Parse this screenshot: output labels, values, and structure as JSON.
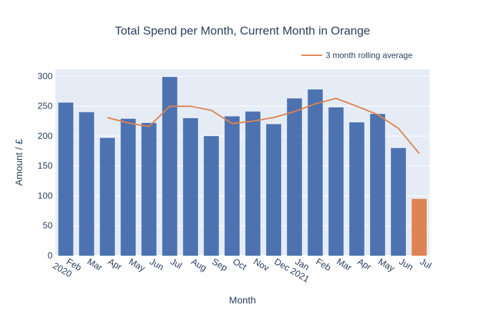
{
  "chart_data": {
    "type": "bar",
    "title": "Total Spend per Month, Current Month in Orange",
    "xlabel": "Month",
    "ylabel": "Amount / £",
    "ylim": [
      0,
      312
    ],
    "yticks": [
      0,
      50,
      100,
      150,
      200,
      250,
      300
    ],
    "grid": true,
    "legend_position": "top-right",
    "categories": [
      "Feb\n2020",
      "Mar",
      "Apr",
      "May",
      "Jun",
      "Jul",
      "Aug",
      "Sep",
      "Oct",
      "Nov",
      "Dec 2021",
      "Jan",
      "Feb",
      "Mar",
      "Apr",
      "May",
      "Jun",
      "Jul"
    ],
    "series": [
      {
        "type": "bar",
        "values": [
          256,
          240,
          197,
          229,
          222,
          299,
          230,
          200,
          233,
          241,
          220,
          263,
          278,
          248,
          223,
          237,
          180,
          95
        ],
        "colors": [
          "#4c72b0",
          "#4c72b0",
          "#4c72b0",
          "#4c72b0",
          "#4c72b0",
          "#4c72b0",
          "#4c72b0",
          "#4c72b0",
          "#4c72b0",
          "#4c72b0",
          "#4c72b0",
          "#4c72b0",
          "#4c72b0",
          "#4c72b0",
          "#4c72b0",
          "#4c72b0",
          "#4c72b0",
          "#dd8452"
        ]
      },
      {
        "type": "line",
        "name": "3 month rolling average",
        "color": "#dd8452",
        "values": [
          null,
          null,
          231,
          222,
          216,
          250,
          250,
          243,
          221,
          225,
          231,
          241,
          254,
          263,
          250,
          236,
          213,
          171
        ]
      }
    ]
  },
  "colors": {
    "plot_bg": "#e5ecf6",
    "grid": "#ffffff",
    "bar": "#4c72b0",
    "current": "#dd8452"
  }
}
